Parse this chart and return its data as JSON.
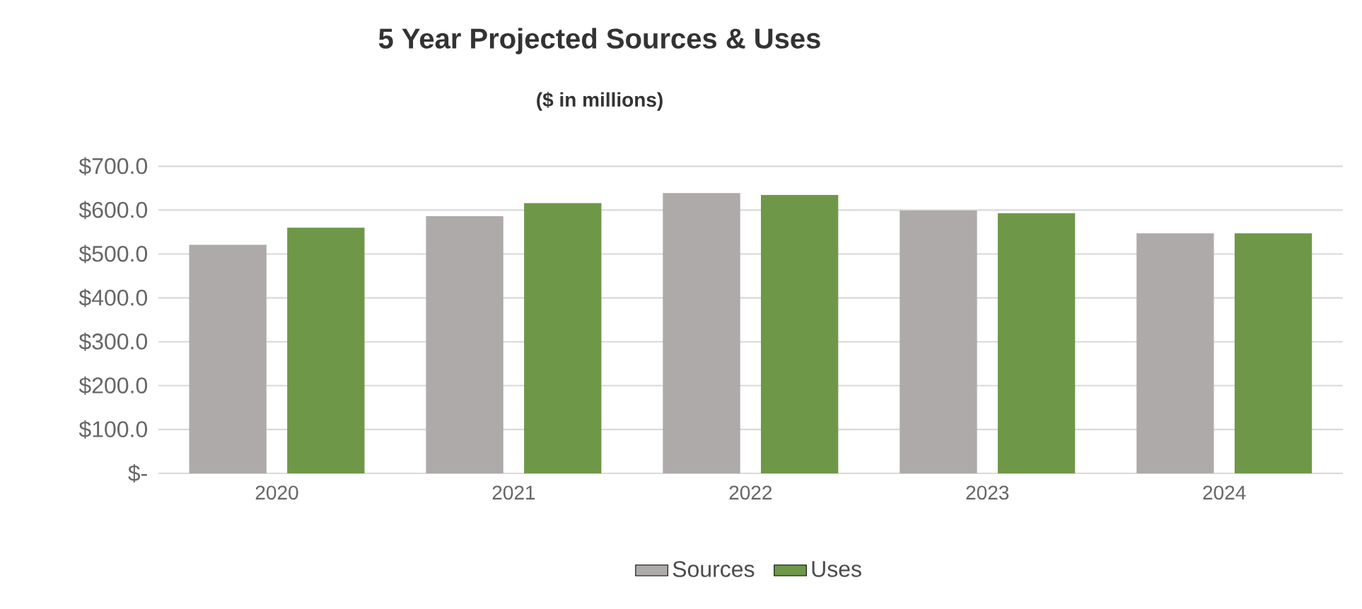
{
  "chart_data": {
    "type": "bar",
    "title": "5 Year Projected Sources & Uses",
    "subtitle": "($ in millions)",
    "categories": [
      "2020",
      "2021",
      "2022",
      "2023",
      "2024"
    ],
    "series": [
      {
        "name": "Sources",
        "color": "#aeaaa9",
        "values": [
          521,
          586,
          639,
          599,
          547
        ]
      },
      {
        "name": "Uses",
        "color": "#6f9748",
        "values": [
          560,
          616,
          635,
          593,
          547
        ]
      }
    ],
    "ylim": [
      0,
      700
    ],
    "yticks": [
      {
        "value": 0,
        "label": "$-"
      },
      {
        "value": 100,
        "label": "$100.0"
      },
      {
        "value": 200,
        "label": "$200.0"
      },
      {
        "value": 300,
        "label": "$300.0"
      },
      {
        "value": 400,
        "label": "$400.0"
      },
      {
        "value": 500,
        "label": "$500.0"
      },
      {
        "value": 600,
        "label": "$600.0"
      },
      {
        "value": 700,
        "label": "$700.0"
      }
    ],
    "grid": "y",
    "legend": "bottom"
  }
}
